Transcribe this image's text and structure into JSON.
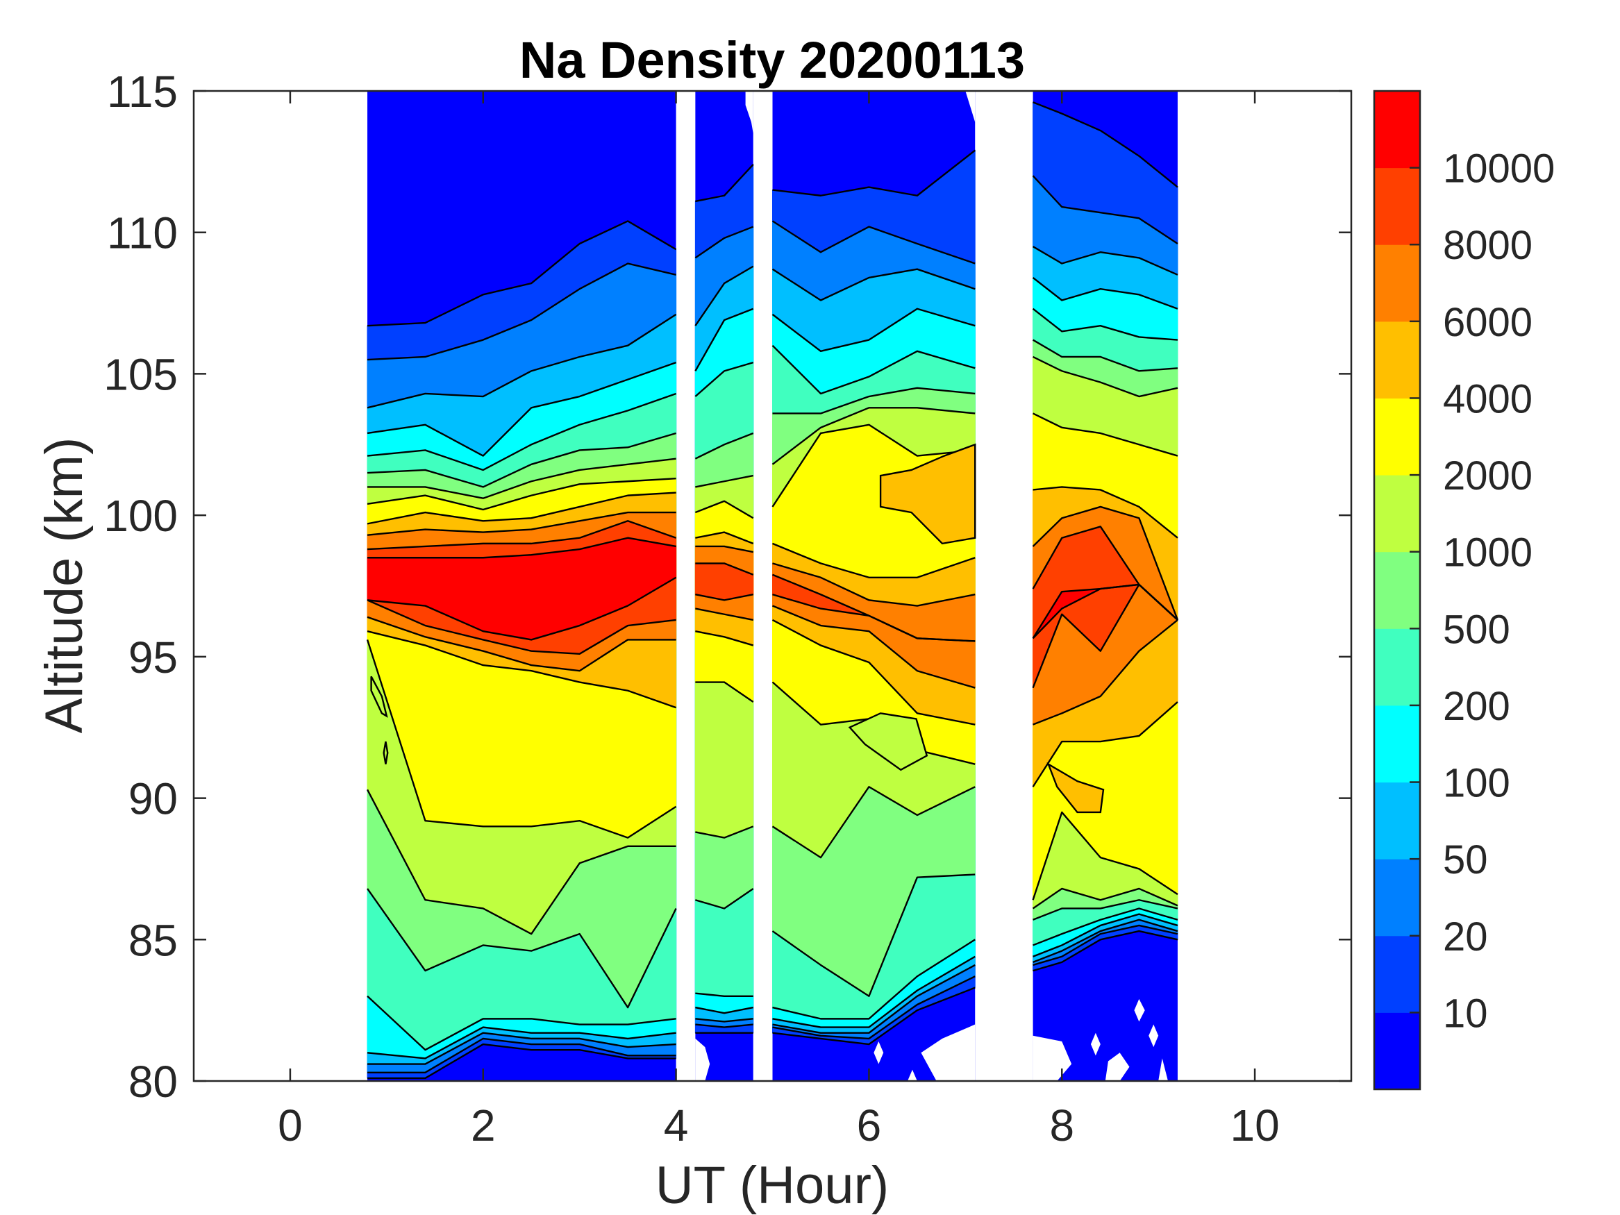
{
  "chart_data": {
    "type": "contourf",
    "title": "Na Density 20200113",
    "xlabel": "UT (Hour)",
    "ylabel": "Altitude (km)",
    "xlim": [
      -1,
      11
    ],
    "ylim": [
      80,
      115
    ],
    "xticks": [
      0,
      2,
      4,
      6,
      8,
      10
    ],
    "xtick_labels": [
      "0",
      "2",
      "4",
      "6",
      "8",
      "10"
    ],
    "yticks": [
      80,
      85,
      90,
      95,
      100,
      105,
      110,
      115
    ],
    "ytick_labels": [
      "80",
      "85",
      "90",
      "95",
      "100",
      "105",
      "110",
      "115"
    ],
    "grid": false,
    "colorbar": {
      "location": "right",
      "levels": [
        10,
        20,
        50,
        100,
        200,
        500,
        1000,
        2000,
        4000,
        6000,
        8000,
        10000
      ],
      "tick_labels": [
        "10",
        "20",
        "50",
        "100",
        "200",
        "500",
        "1000",
        "2000",
        "4000",
        "6000",
        "8000",
        "10000"
      ],
      "colors": [
        "#0000FF",
        "#0040FF",
        "#0080FF",
        "#00BFFF",
        "#00FFFF",
        "#40FFBF",
        "#80FF80",
        "#BFFF40",
        "#FFFF00",
        "#FFBF00",
        "#FF8000",
        "#FF4000",
        "#FF0000"
      ]
    },
    "segments": [
      {
        "t": [
          0.8,
          1.4,
          2.0,
          2.5,
          3.0,
          3.5,
          4.0
        ],
        "upper_km": [
          [
            106.7,
            105.5,
            103.8,
            102.9,
            102.1,
            101.5,
            101.0,
            100.4,
            99.7,
            99.3,
            98.8,
            98.5
          ],
          [
            106.8,
            105.6,
            104.3,
            103.2,
            102.3,
            101.6,
            101.0,
            100.7,
            100.1,
            99.5,
            98.9,
            98.5
          ],
          [
            107.8,
            106.2,
            104.2,
            102.1,
            101.6,
            101.0,
            100.6,
            100.2,
            99.8,
            99.4,
            99.0,
            98.5
          ],
          [
            108.2,
            106.9,
            105.1,
            103.8,
            102.5,
            101.8,
            101.2,
            100.7,
            99.9,
            99.5,
            99.0,
            98.6
          ],
          [
            109.6,
            108.0,
            105.6,
            104.2,
            103.2,
            102.3,
            101.6,
            101.1,
            100.3,
            99.8,
            99.2,
            98.8
          ],
          [
            110.4,
            108.9,
            106.0,
            104.8,
            103.7,
            102.4,
            101.8,
            101.2,
            100.7,
            100.1,
            99.8,
            99.2
          ],
          [
            109.4,
            108.5,
            107.1,
            105.4,
            104.3,
            102.9,
            102.0,
            101.3,
            100.8,
            100.1,
            99.2,
            98.9
          ]
        ],
        "lower_km": [
          [
            80.1,
            80.3,
            80.6,
            81.0,
            83.0,
            86.8,
            90.3,
            95.6,
            95.9,
            96.4,
            97.0,
            97.0
          ],
          [
            80.1,
            80.3,
            80.6,
            80.8,
            81.1,
            83.9,
            86.4,
            89.2,
            95.4,
            95.7,
            96.1,
            96.8
          ],
          [
            81.3,
            81.5,
            81.7,
            81.9,
            82.2,
            84.8,
            86.1,
            89.0,
            94.7,
            95.2,
            95.6,
            95.9
          ],
          [
            81.1,
            81.3,
            81.5,
            81.7,
            82.2,
            84.6,
            85.2,
            89.0,
            94.5,
            94.7,
            95.2,
            95.6
          ],
          [
            81.1,
            81.3,
            81.5,
            81.7,
            82.0,
            85.2,
            87.7,
            89.2,
            94.1,
            94.5,
            95.1,
            96.1
          ],
          [
            80.8,
            80.9,
            81.2,
            81.5,
            82.0,
            82.6,
            88.3,
            88.6,
            93.8,
            95.6,
            96.1,
            96.8
          ],
          [
            80.8,
            80.9,
            81.3,
            81.7,
            82.2,
            86.1,
            88.3,
            89.7,
            93.2,
            95.6,
            96.3,
            97.8
          ]
        ]
      },
      {
        "t": [
          4.2,
          4.5,
          4.8
        ],
        "upper_km": [
          [
            111.1,
            109.1,
            106.7,
            105.1,
            104.2,
            102.0,
            101.0,
            100.1,
            99.2,
            98.9,
            98.3,
            null
          ],
          [
            111.3,
            109.8,
            108.2,
            106.9,
            105.1,
            102.5,
            101.2,
            100.5,
            99.4,
            98.9,
            98.3,
            null
          ],
          [
            112.4,
            110.2,
            108.8,
            107.3,
            105.4,
            102.9,
            101.4,
            99.9,
            99.0,
            98.7,
            97.9,
            null
          ]
        ],
        "lower_km": [
          [
            81.7,
            82.0,
            82.2,
            82.6,
            83.1,
            86.4,
            88.8,
            94.1,
            95.9,
            96.7,
            97.2,
            null
          ],
          [
            81.7,
            81.9,
            82.1,
            82.4,
            83.0,
            86.1,
            88.6,
            94.1,
            95.7,
            96.5,
            97.0,
            null
          ],
          [
            81.7,
            82.0,
            82.2,
            82.6,
            83.0,
            86.8,
            89.0,
            93.4,
            95.4,
            96.3,
            97.2,
            null
          ]
        ]
      },
      {
        "t": [
          5.0,
          5.5,
          6.0,
          6.5,
          7.1
        ],
        "upper_km": [
          [
            111.5,
            110.4,
            108.7,
            107.1,
            106.0,
            103.6,
            101.8,
            100.3,
            99.0,
            98.3,
            97.9,
            null
          ],
          [
            111.3,
            109.3,
            107.6,
            105.8,
            104.3,
            103.6,
            103.1,
            102.9,
            98.3,
            97.8,
            97.2,
            null
          ],
          [
            111.6,
            110.2,
            108.4,
            106.2,
            104.9,
            104.2,
            103.8,
            103.2,
            97.8,
            97.0,
            null,
            null
          ],
          [
            111.3,
            109.6,
            108.7,
            107.3,
            105.8,
            104.5,
            103.8,
            102.1,
            97.8,
            96.8,
            null,
            null
          ],
          [
            112.9,
            108.9,
            108.0,
            106.7,
            105.2,
            104.3,
            103.6,
            102.3,
            98.5,
            97.2,
            null,
            null
          ]
        ],
        "lower_km": [
          [
            81.7,
            81.9,
            82.0,
            82.2,
            82.6,
            85.3,
            89.0,
            94.1,
            96.3,
            96.8,
            97.2,
            null
          ],
          [
            81.5,
            81.6,
            81.7,
            81.9,
            82.2,
            84.1,
            87.9,
            92.6,
            95.4,
            96.1,
            96.7,
            null
          ],
          [
            81.3,
            81.5,
            81.7,
            81.9,
            82.2,
            83.0,
            90.4,
            92.8,
            94.8,
            95.9,
            null,
            null
          ],
          [
            82.5,
            82.7,
            83.0,
            83.2,
            83.7,
            87.2,
            89.4,
            91.7,
            93.0,
            94.5,
            null,
            null
          ],
          [
            83.3,
            83.7,
            84.1,
            84.4,
            85.0,
            87.3,
            90.4,
            91.2,
            92.6,
            93.9,
            null,
            null
          ]
        ]
      },
      {
        "t": [
          7.7,
          8.0,
          8.4,
          8.8,
          9.2
        ],
        "upper_km": [
          [
            114.6,
            112.0,
            109.5,
            108.4,
            107.3,
            106.2,
            105.6,
            103.6,
            100.9,
            98.9,
            97.4,
            null
          ],
          [
            114.2,
            110.9,
            108.9,
            107.6,
            106.5,
            105.6,
            105.1,
            103.1,
            101.0,
            99.9,
            99.2,
            97.3
          ],
          [
            113.6,
            110.7,
            109.3,
            108.0,
            106.7,
            105.6,
            104.7,
            102.9,
            100.9,
            100.3,
            99.6,
            null
          ],
          [
            112.7,
            110.5,
            109.1,
            107.8,
            106.3,
            105.1,
            104.2,
            102.5,
            100.3,
            99.9,
            null,
            null
          ],
          [
            111.6,
            109.6,
            108.5,
            107.3,
            106.2,
            105.2,
            104.5,
            102.1,
            99.2,
            null,
            null,
            null
          ]
        ],
        "lower_km": [
          [
            83.9,
            84.1,
            84.2,
            84.4,
            84.8,
            85.7,
            86.1,
            86.4,
            90.4,
            92.6,
            93.9,
            null
          ],
          [
            84.2,
            84.4,
            84.6,
            84.8,
            85.2,
            86.1,
            86.8,
            89.5,
            92.0,
            93.0,
            96.5,
            96.7
          ],
          [
            85.0,
            85.2,
            85.3,
            85.5,
            85.7,
            86.1,
            86.4,
            87.9,
            92.0,
            93.6,
            95.2,
            null
          ],
          [
            85.3,
            85.5,
            85.7,
            85.9,
            86.1,
            86.4,
            86.8,
            87.5,
            92.2,
            95.2,
            null,
            null
          ],
          [
            85.0,
            85.2,
            85.3,
            85.5,
            85.7,
            86.1,
            86.2,
            86.6,
            93.4,
            null,
            null,
            null
          ]
        ]
      }
    ],
    "patches": [
      {
        "band": 9,
        "points": [
          [
            6.12,
            101.4
          ],
          [
            6.44,
            101.6
          ],
          [
            6.78,
            102.1
          ],
          [
            7.1,
            102.5
          ],
          [
            7.1,
            99.2
          ],
          [
            6.76,
            99.0
          ],
          [
            6.44,
            100.1
          ],
          [
            6.12,
            100.3
          ]
        ]
      },
      {
        "band": 7,
        "points": [
          [
            5.8,
            92.5
          ],
          [
            6.12,
            93.0
          ],
          [
            6.49,
            92.8
          ],
          [
            6.6,
            91.5
          ],
          [
            6.33,
            91.0
          ],
          [
            5.96,
            91.9
          ]
        ]
      },
      {
        "band": 9,
        "points": [
          [
            7.86,
            91.2
          ],
          [
            8.16,
            90.6
          ],
          [
            8.43,
            90.3
          ],
          [
            8.4,
            89.5
          ],
          [
            8.16,
            89.5
          ],
          [
            7.95,
            90.4
          ]
        ]
      },
      {
        "band": 7,
        "points": [
          [
            0.84,
            94.3
          ],
          [
            0.95,
            93.6
          ],
          [
            1.0,
            92.9
          ],
          [
            0.95,
            93.0
          ],
          [
            0.84,
            93.8
          ]
        ]
      },
      {
        "band": 7,
        "points": [
          [
            0.99,
            92.0
          ],
          [
            1.01,
            91.6
          ],
          [
            0.99,
            91.2
          ],
          [
            0.97,
            91.6
          ]
        ]
      }
    ],
    "missing": [
      {
        "points": [
          [
            6.76,
            81.5
          ],
          [
            7.1,
            82.0
          ],
          [
            7.1,
            80.0
          ],
          [
            6.7,
            80.0
          ],
          [
            6.54,
            81.0
          ]
        ]
      },
      {
        "points": [
          [
            6.05,
            81.0
          ],
          [
            6.1,
            81.4
          ],
          [
            6.15,
            81.0
          ],
          [
            6.1,
            80.6
          ]
        ]
      },
      {
        "points": [
          [
            6.4,
            80.0
          ],
          [
            6.45,
            80.4
          ],
          [
            6.5,
            80.0
          ]
        ]
      },
      {
        "points": [
          [
            7.7,
            81.6
          ],
          [
            8.0,
            81.4
          ],
          [
            8.1,
            80.6
          ],
          [
            7.95,
            80.0
          ],
          [
            7.7,
            80.0
          ]
        ]
      },
      {
        "points": [
          [
            8.3,
            81.3
          ],
          [
            8.35,
            81.7
          ],
          [
            8.4,
            81.3
          ],
          [
            8.35,
            80.9
          ]
        ]
      },
      {
        "points": [
          [
            8.48,
            80.7
          ],
          [
            8.6,
            81.0
          ],
          [
            8.7,
            80.5
          ],
          [
            8.6,
            80.0
          ],
          [
            8.45,
            80.0
          ]
        ]
      },
      {
        "points": [
          [
            8.75,
            82.5
          ],
          [
            8.8,
            82.9
          ],
          [
            8.86,
            82.5
          ],
          [
            8.8,
            82.1
          ]
        ]
      },
      {
        "points": [
          [
            8.9,
            81.6
          ],
          [
            8.95,
            82.0
          ],
          [
            9.0,
            81.6
          ],
          [
            8.95,
            81.2
          ]
        ]
      },
      {
        "points": [
          [
            9.0,
            80.0
          ],
          [
            9.04,
            80.8
          ],
          [
            9.1,
            80.0
          ]
        ]
      },
      {
        "points": [
          [
            4.2,
            81.5
          ],
          [
            4.3,
            81.2
          ],
          [
            4.35,
            80.6
          ],
          [
            4.3,
            80.0
          ],
          [
            4.2,
            80.0
          ]
        ]
      },
      {
        "points": [
          [
            4.72,
            115.0
          ],
          [
            4.72,
            114.5
          ],
          [
            4.78,
            113.9
          ],
          [
            4.8,
            113.5
          ],
          [
            4.8,
            115.0
          ]
        ]
      },
      {
        "points": [
          [
            4.98,
            115.0
          ],
          [
            4.98,
            114.2
          ],
          [
            4.92,
            114.7
          ],
          [
            4.9,
            115.0
          ]
        ]
      },
      {
        "points": [
          [
            7.0,
            115.0
          ],
          [
            7.1,
            113.9
          ],
          [
            7.1,
            115.0
          ]
        ]
      }
    ]
  }
}
